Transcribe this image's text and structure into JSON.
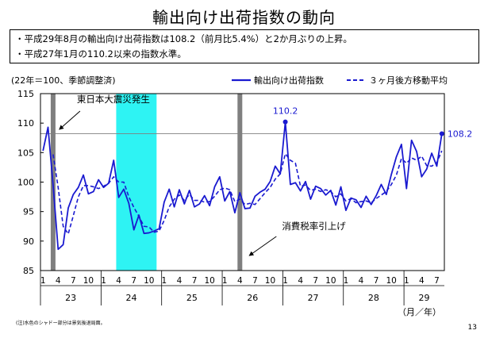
{
  "page": {
    "title": "輸出向け出荷指数の動向",
    "bullets": [
      "・平成29年8月の輸出向け出荷指数は108.2（前月比5.4%）と2か月ぶりの上昇。",
      "・平成27年1月の110.2以来の指数水準。"
    ],
    "footnote": "(注)水色のシャドー部分は景気後退局面。",
    "page_number": "13"
  },
  "chart_data": {
    "type": "line",
    "unit_label": "(22年＝100、季節調整済)",
    "ylim": [
      85,
      115
    ],
    "yticks": [
      "85",
      "90",
      "95",
      "100",
      "105",
      "110",
      "115"
    ],
    "month_tick_labels": [
      "1",
      "4",
      "7",
      "10"
    ],
    "year_labels": [
      "23",
      "24",
      "25",
      "26",
      "27",
      "28",
      "29"
    ],
    "axis_unit": "（月／年）",
    "months": [
      "2011-01",
      "2017-08"
    ],
    "series": [
      {
        "name": "輸出向け出荷指数",
        "style": "solid",
        "color": "#1a1ad0",
        "values": [
          105.3,
          109.3,
          99.5,
          88.6,
          89.4,
          95.6,
          97.9,
          99.1,
          101.2,
          98.0,
          98.4,
          100.4,
          99.1,
          99.8,
          103.7,
          97.4,
          98.8,
          96.4,
          91.9,
          94.4,
          91.3,
          91.4,
          91.7,
          92.1,
          96.6,
          98.8,
          95.8,
          98.7,
          96.3,
          98.6,
          95.8,
          96.3,
          97.7,
          96.0,
          99.2,
          100.9,
          96.8,
          98.4,
          94.8,
          98.2,
          95.5,
          95.6,
          97.6,
          98.3,
          98.8,
          100.1,
          102.7,
          101.4,
          110.2,
          99.6,
          99.9,
          98.5,
          100.1,
          97.1,
          99.3,
          98.9,
          97.8,
          98.6,
          96.1,
          99.2,
          95.2,
          97.3,
          97.0,
          95.7,
          97.6,
          96.2,
          97.7,
          99.6,
          97.9,
          101.3,
          104.3,
          106.4,
          98.9,
          107.1,
          105.2,
          100.9,
          102.2,
          104.9,
          102.7,
          108.2
        ]
      },
      {
        "name": "３ヶ月後方移動平均",
        "style": "dashed",
        "color": "#1a1ad0",
        "values": [
          null,
          null,
          104.7,
          99.1,
          92.5,
          91.2,
          94.3,
          97.5,
          99.4,
          99.4,
          99.2,
          98.9,
          99.3,
          99.8,
          100.9,
          100.0,
          100.0,
          97.5,
          95.7,
          94.2,
          92.5,
          92.4,
          91.5,
          91.7,
          93.5,
          95.8,
          97.1,
          97.8,
          96.9,
          97.9,
          96.9,
          96.9,
          96.6,
          96.7,
          97.6,
          98.7,
          99.0,
          98.7,
          96.7,
          97.1,
          96.2,
          96.4,
          96.2,
          97.2,
          98.2,
          99.1,
          100.5,
          101.4,
          104.8,
          103.7,
          103.2,
          99.3,
          99.5,
          98.6,
          98.8,
          98.4,
          98.7,
          98.4,
          97.5,
          98.0,
          96.8,
          97.2,
          96.5,
          96.7,
          96.8,
          96.5,
          97.2,
          97.8,
          98.4,
          99.6,
          101.2,
          104.0,
          103.2,
          104.1,
          103.7,
          104.4,
          102.8,
          102.7,
          103.3,
          105.3
        ]
      }
    ],
    "highlights": [
      {
        "month": "2015-01",
        "value_label": "110.2"
      },
      {
        "month": "2017-08",
        "value_label": "108.2"
      }
    ],
    "reference_line": 108.2,
    "annotations": [
      {
        "text": "東日本大震災発生",
        "month": "2011-03"
      },
      {
        "text": "消費税率引上げ",
        "month": "2014-04"
      }
    ],
    "shading": [
      {
        "kind": "gray",
        "start": "2011-03",
        "end": "2011-03"
      },
      {
        "kind": "recession",
        "start": "2012-04",
        "end": "2012-11"
      },
      {
        "kind": "gray",
        "start": "2014-04",
        "end": "2014-04"
      }
    ],
    "colors": {
      "series": "#1a1ad0",
      "recession": "#2ef3f3",
      "event_bar": "#7f7f7f",
      "reference": "#7f7f7f"
    }
  }
}
